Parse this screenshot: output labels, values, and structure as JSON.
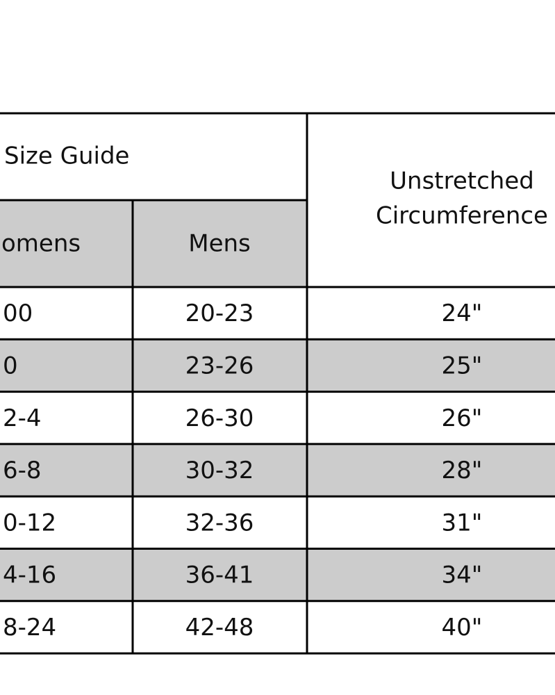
{
  "table": {
    "title": "Size Guide",
    "headers": [
      "omens",
      "Mens"
    ],
    "measure_header": [
      "Unstretched",
      "Circumference"
    ],
    "rows": [
      [
        "00",
        "20-23",
        "24\""
      ],
      [
        "0",
        "23-26",
        "25\""
      ],
      [
        "2-4",
        "26-30",
        "26\""
      ],
      [
        "6-8",
        "30-32",
        "28\""
      ],
      [
        "0-12",
        "32-36",
        "31\""
      ],
      [
        "4-16",
        "36-41",
        "34\""
      ],
      [
        "8-24",
        "42-48",
        "40\""
      ]
    ]
  }
}
